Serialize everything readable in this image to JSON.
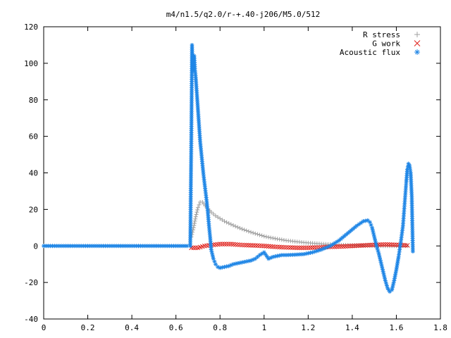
{
  "chart_data": {
    "type": "scatter",
    "title": "m4/n1.5/q2.0/r-+.40-j206/M5.0/512",
    "xlabel": "",
    "ylabel": "",
    "xlim": [
      0,
      1.8
    ],
    "ylim": [
      -40,
      120
    ],
    "x_ticks": [
      "0",
      "0.2",
      "0.4",
      "0.6",
      "0.8",
      "1",
      "1.2",
      "1.4",
      "1.6",
      "1.8"
    ],
    "y_ticks": [
      "-40",
      "-20",
      "0",
      "20",
      "40",
      "60",
      "80",
      "100",
      "120"
    ],
    "grid": false,
    "legend_position": "top-right",
    "series": [
      {
        "name": "R stress",
        "color": "#a0a0a0",
        "marker": "plus",
        "x": [
          0.67,
          0.68,
          0.69,
          0.7,
          0.71,
          0.72,
          0.74,
          0.76,
          0.78,
          0.8,
          0.82,
          0.85,
          0.88,
          0.91,
          0.94,
          0.97,
          1.0,
          1.03,
          1.06,
          1.1,
          1.14,
          1.18,
          1.22,
          1.26,
          1.3,
          1.35,
          1.4,
          1.45,
          1.5,
          1.55,
          1.6,
          1.65
        ],
        "y": [
          5,
          10,
          16,
          21,
          24,
          24,
          21,
          18.5,
          16.5,
          15,
          13.5,
          11.8,
          10.2,
          8.8,
          7.5,
          6.4,
          5.3,
          4.5,
          3.8,
          3.0,
          2.4,
          1.9,
          1.5,
          1.1,
          0.8,
          0.5,
          0.3,
          0.2,
          0.1,
          0,
          0,
          0
        ]
      },
      {
        "name": "G work",
        "color": "#e0201b",
        "marker": "cross",
        "x": [
          0.67,
          0.7,
          0.73,
          0.76,
          0.8,
          0.85,
          0.9,
          0.95,
          1.0,
          1.05,
          1.1,
          1.15,
          1.2,
          1.25,
          1.3,
          1.35,
          1.4,
          1.45,
          1.5,
          1.55,
          1.6,
          1.65
        ],
        "y": [
          -1,
          -1,
          0,
          0.5,
          1,
          1,
          0.5,
          0.3,
          0,
          -0.5,
          -0.8,
          -1,
          -1,
          -0.8,
          -0.5,
          -0.3,
          0,
          0.3,
          0.6,
          0.8,
          0.6,
          0.3
        ]
      },
      {
        "name": "Acoustic flux",
        "color": "#1f86e6",
        "marker": "star",
        "x": [
          0,
          0.05,
          0.1,
          0.15,
          0.2,
          0.25,
          0.3,
          0.35,
          0.4,
          0.45,
          0.5,
          0.55,
          0.6,
          0.65,
          0.665,
          0.67,
          0.673,
          0.676,
          0.68,
          0.683,
          0.686,
          0.69,
          0.694,
          0.698,
          0.702,
          0.706,
          0.71,
          0.715,
          0.72,
          0.725,
          0.73,
          0.735,
          0.74,
          0.745,
          0.75,
          0.755,
          0.76,
          0.77,
          0.78,
          0.79,
          0.8,
          0.82,
          0.84,
          0.86,
          0.88,
          0.9,
          0.92,
          0.94,
          0.96,
          0.98,
          1.0,
          1.02,
          1.04,
          1.06,
          1.08,
          1.1,
          1.14,
          1.18,
          1.22,
          1.26,
          1.3,
          1.34,
          1.38,
          1.42,
          1.45,
          1.47,
          1.48,
          1.49,
          1.5,
          1.51,
          1.52,
          1.53,
          1.54,
          1.55,
          1.56,
          1.57,
          1.58,
          1.59,
          1.6,
          1.61,
          1.62,
          1.63,
          1.635,
          1.64,
          1.645,
          1.65,
          1.655,
          1.66,
          1.665,
          1.67,
          1.675
        ],
        "y": [
          0,
          0,
          0,
          0,
          0,
          0,
          0,
          0,
          0,
          0,
          0,
          0,
          0,
          0,
          0,
          62,
          110,
          96,
          103,
          104,
          97,
          92,
          85,
          78,
          71,
          64,
          57,
          51,
          45,
          39,
          34,
          29,
          24,
          18,
          11,
          5,
          -2,
          -7,
          -10,
          -11.5,
          -12,
          -11.5,
          -11,
          -10,
          -9.5,
          -9,
          -8.5,
          -8,
          -7,
          -5,
          -3.5,
          -7,
          -6,
          -5.5,
          -5,
          -5,
          -4.8,
          -4.5,
          -3.5,
          -2,
          0,
          3,
          7,
          11,
          13.5,
          14,
          13,
          10,
          5,
          0,
          -4,
          -9,
          -14,
          -19,
          -23,
          -25,
          -24,
          -19,
          -13,
          -6,
          2,
          11,
          19,
          27,
          35,
          42,
          45,
          44,
          40,
          27,
          -3
        ]
      }
    ]
  }
}
